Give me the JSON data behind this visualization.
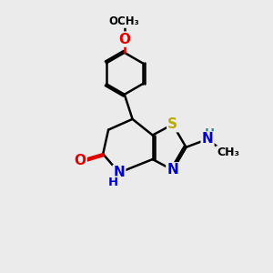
{
  "bg_color": "#ebebeb",
  "atom_colors": {
    "C": "#000000",
    "N": "#0000cc",
    "O": "#dd0000",
    "S": "#bbaa00",
    "H": "#555555"
  },
  "bond_lw": 1.8,
  "font_size_atom": 11,
  "font_size_small": 9.5
}
